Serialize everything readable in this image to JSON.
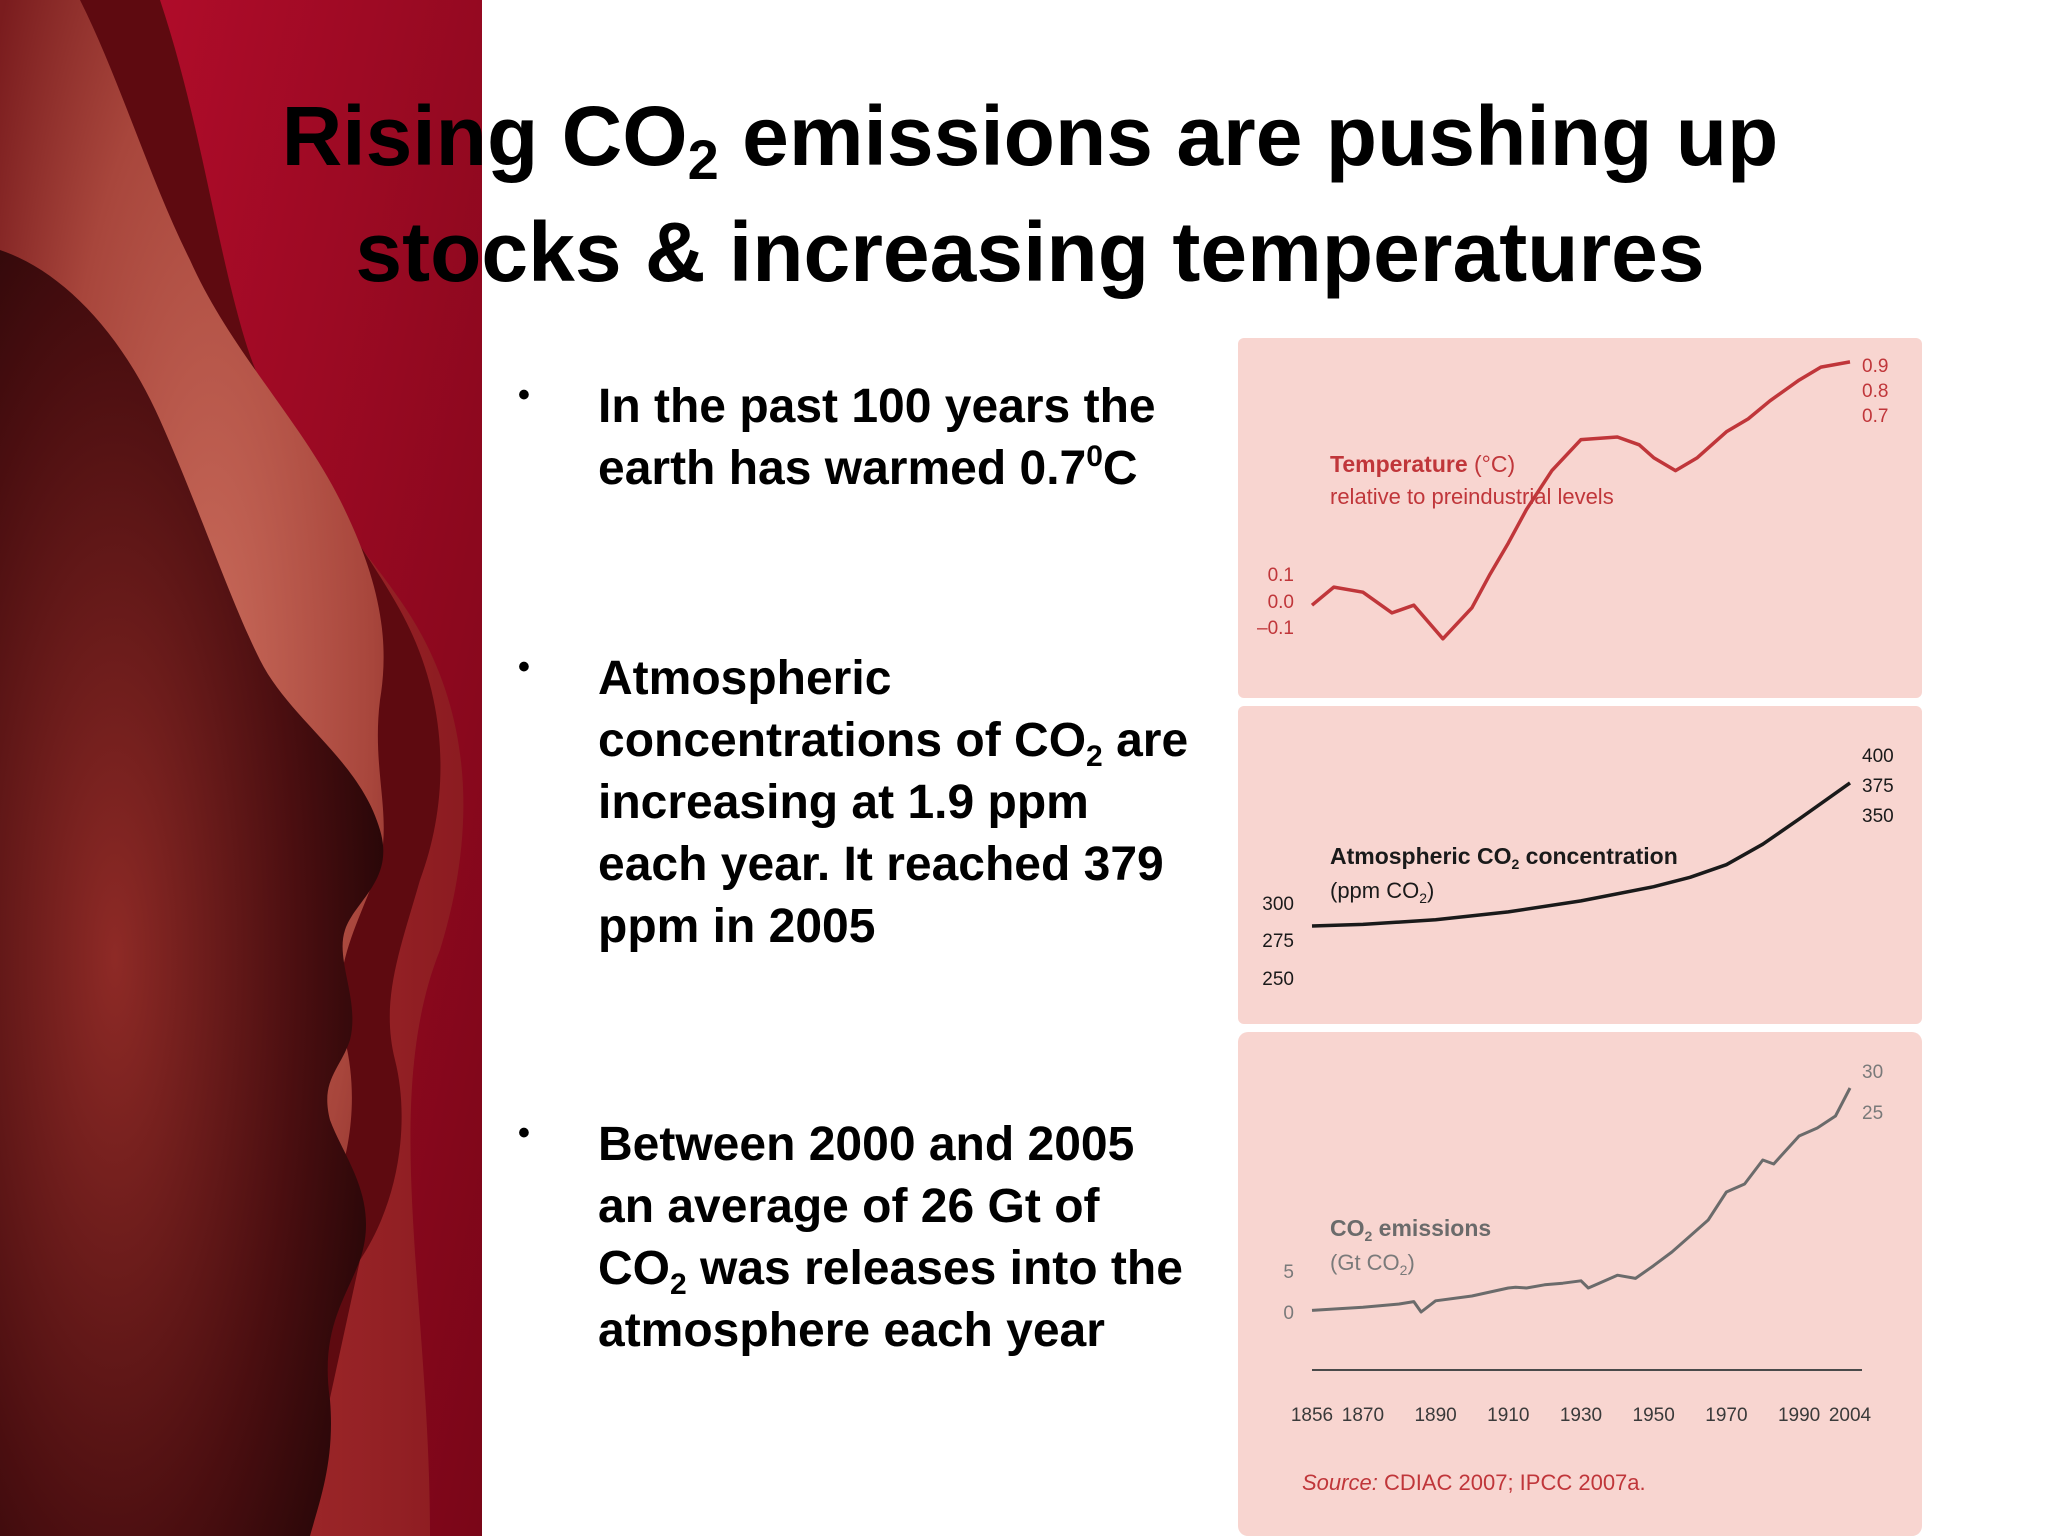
{
  "slide": {
    "title": {
      "line1_pre": "Rising CO",
      "line1_sub": "2",
      "line1_post": " emissions are pushing up",
      "line2": "stocks & increasing temperatures"
    },
    "bullet_glyph": "•",
    "bullets": [
      {
        "part1": "In the past 100 years the earth has warmed 0.7",
        "sup": "0",
        "part2": "C"
      },
      {
        "part1": "Atmospheric concentrations of CO",
        "sub": "2",
        "part2": " are increasing at 1.9 ppm each year. It reached 379 ppm in 2005"
      },
      {
        "part1": "Between 2000 and 2005 an average of 26 Gt of CO",
        "sub": "2",
        "part2": " was releases into the atmosphere each year"
      }
    ]
  },
  "colors": {
    "panel_bg": "#f8d5d0",
    "temperature_line": "#c0363a",
    "temperature_text": "#c0363a",
    "co2_concentration_line": "#1a1a1a",
    "co2_emissions_line": "#6b6b6b",
    "deco_dark": "#2a0a0a",
    "deco_crimson": "#9c0a24",
    "deco_salmon": "#b85a4e"
  },
  "chart_data": [
    {
      "type": "line",
      "panel": "temperature",
      "title_bold": "Temperature",
      "title_rest": " (°C)",
      "subtitle": "relative to preindustrial levels",
      "x": [
        1856,
        1862,
        1870,
        1878,
        1884,
        1892,
        1900,
        1905,
        1910,
        1915,
        1922,
        1930,
        1940,
        1946,
        1950,
        1956,
        1962,
        1970,
        1976,
        1982,
        1990,
        1996,
        2004
      ],
      "values": [
        -0.02,
        0.05,
        0.03,
        -0.05,
        -0.02,
        -0.15,
        -0.03,
        0.1,
        0.22,
        0.35,
        0.5,
        0.62,
        0.63,
        0.6,
        0.55,
        0.5,
        0.55,
        0.65,
        0.7,
        0.77,
        0.85,
        0.9,
        0.92
      ],
      "left_ticks": [
        "0.1",
        "0.0",
        "–0.1"
      ],
      "right_ticks": [
        "0.9",
        "0.8",
        "0.7"
      ]
    },
    {
      "type": "line",
      "panel": "co2_concentration",
      "title_pre": "Atmospheric CO",
      "title_sub": "2",
      "title_post": " concentration",
      "unit_pre": "(ppm CO",
      "unit_sub": "2",
      "unit_post": ")",
      "x": [
        1856,
        1870,
        1890,
        1910,
        1930,
        1950,
        1960,
        1970,
        1980,
        1990,
        2004
      ],
      "values": [
        286,
        287,
        290,
        295,
        302,
        311,
        317,
        325,
        338,
        354,
        377
      ],
      "left_ticks": [
        "300",
        "275",
        "250"
      ],
      "right_ticks": [
        "400",
        "375",
        "350"
      ]
    },
    {
      "type": "line",
      "panel": "co2_emissions",
      "title_pre": "CO",
      "title_sub": "2",
      "title_post": " emissions",
      "unit_pre": "(Gt CO",
      "unit_sub": "2",
      "unit_post": ")",
      "x": [
        1856,
        1870,
        1880,
        1884,
        1886,
        1890,
        1900,
        1905,
        1910,
        1912,
        1915,
        1920,
        1925,
        1930,
        1932,
        1935,
        1940,
        1945,
        1950,
        1955,
        1960,
        1965,
        1970,
        1975,
        1980,
        1983,
        1985,
        1990,
        1995,
        2000,
        2004
      ],
      "values": [
        0.2,
        0.6,
        1.0,
        1.3,
        0.0,
        1.4,
        2.0,
        2.5,
        3.0,
        3.1,
        3.0,
        3.4,
        3.6,
        3.9,
        3.0,
        3.6,
        4.6,
        4.2,
        5.8,
        7.5,
        9.5,
        11.5,
        15.0,
        16.0,
        19.0,
        18.5,
        19.5,
        22.0,
        23.0,
        24.5,
        28.0
      ],
      "left_ticks": [
        "5",
        "0"
      ],
      "right_ticks": [
        "30",
        "25"
      ],
      "x_tick_labels": [
        "1856",
        "1870",
        "1890",
        "1910",
        "1930",
        "1950",
        "1970",
        "1990",
        "2004"
      ]
    }
  ],
  "source": {
    "label": "Source:",
    "text": " CDIAC 2007; IPCC 2007a."
  }
}
